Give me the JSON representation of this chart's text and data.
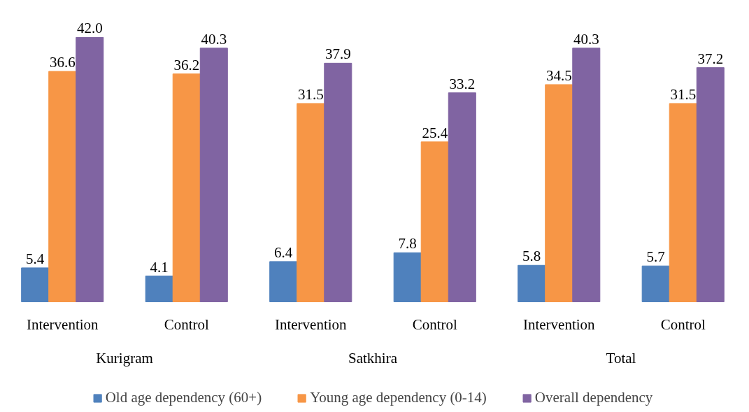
{
  "chart_data": {
    "type": "bar",
    "categories": [
      "Intervention",
      "Control",
      "Intervention",
      "Control",
      "Intervention",
      "Control"
    ],
    "annotations": [
      "Kurigram",
      "Satkhira",
      "Total"
    ],
    "series": [
      {
        "name": "Old age dependency (60+)",
        "color": "#4f81bd",
        "values": [
          5.4,
          4.1,
          6.4,
          7.8,
          5.8,
          5.7
        ],
        "value_labels": [
          "5.4",
          "4.1",
          "6.4",
          "7.8",
          "5.8",
          "5.7"
        ]
      },
      {
        "name": "Young age dependency (0-14)",
        "color": "#f79646",
        "values": [
          36.6,
          36.2,
          31.5,
          25.4,
          34.5,
          31.5
        ],
        "value_labels": [
          "36.6",
          "36.2",
          "31.5",
          "25.4",
          "34.5",
          "31.5"
        ]
      },
      {
        "name": "Overall dependency",
        "color": "#8064a2",
        "values": [
          42.0,
          40.3,
          37.9,
          33.2,
          40.3,
          37.2
        ],
        "value_labels": [
          "42.0",
          "40.3",
          "37.9",
          "33.2",
          "40.3",
          "37.2"
        ]
      }
    ],
    "legend": "bottom"
  }
}
